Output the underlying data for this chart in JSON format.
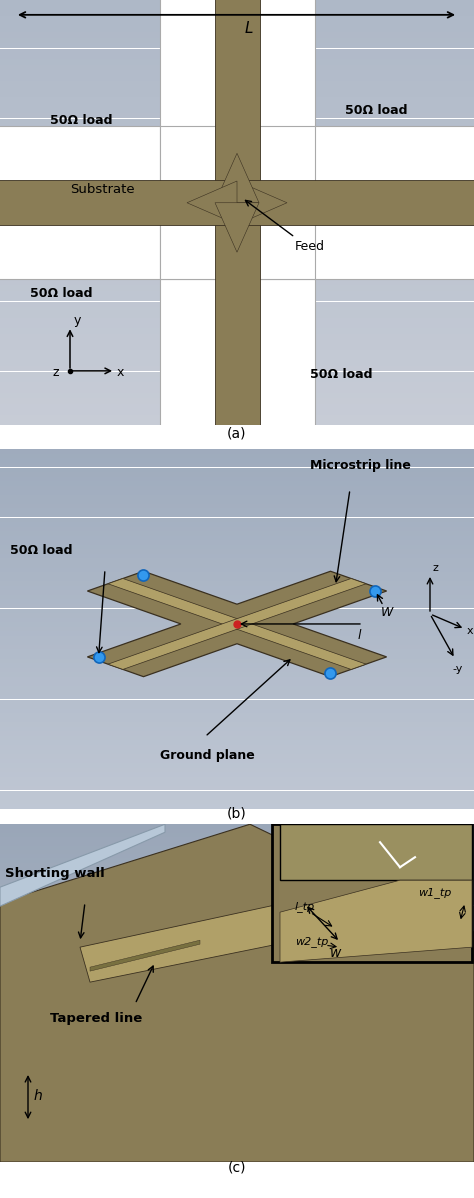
{
  "fig_width": 4.74,
  "fig_height": 11.98,
  "dpi": 100,
  "bg_top": "#b8bfcc",
  "bg_bot": "#9aa3b2",
  "ground_color": "#8a7d56",
  "ground_edge": "#3a3020",
  "microstrip_color": "#a09060",
  "microstrip_light": "#b0a068",
  "substrate_color": "#ffffff",
  "substrate_edge": "#aaaaaa",
  "blue_dot": "#3399ee",
  "blue_dot_edge": "#1166bb",
  "red_dot": "#cc2222",
  "sw_color": "#b8c8d8",
  "sw_edge": "#889aaa",
  "label_a": "(a)",
  "label_b": "(b)",
  "label_c": "(c)",
  "text_50ohm": "50Ω load",
  "text_substrate": "Substrate",
  "text_feed": "Feed",
  "text_L": "L",
  "text_microstrip": "Microstrip line",
  "text_ground": "Ground plane",
  "text_50ohm_b": "50Ω load",
  "text_shorting": "Shorting wall",
  "text_tapered": "Tapered line",
  "text_h": "h",
  "text_w": "w",
  "text_w1tp": "w1_tp",
  "text_ltp": "l_tp",
  "text_w2tp": "w2_tp",
  "text_W": "W",
  "text_l": "l"
}
